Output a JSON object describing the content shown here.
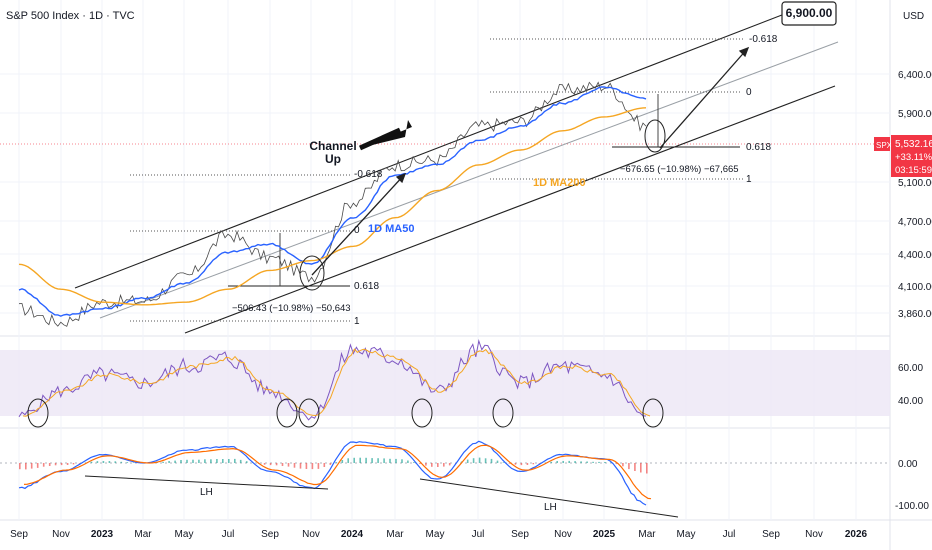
{
  "header": {
    "title": "S&P 500 Index · 1D · TVC"
  },
  "currency": "USD",
  "price_axis": {
    "ticks": [
      "6,400.00",
      "5,900.00",
      "5,100.00",
      "4,700.00",
      "4,400.00",
      "4,100.00",
      "3,860.00"
    ],
    "badge_symbol": "SPX",
    "badge_price": "5,532.16",
    "badge_change": "+33.11%",
    "badge_time": "03:15:59"
  },
  "rsi_axis": {
    "ticks": [
      "60.00",
      "40.00"
    ]
  },
  "macd_axis": {
    "ticks": [
      "0.00",
      "-100.00"
    ]
  },
  "time_axis": [
    "Sep",
    "Nov",
    "2023",
    "Mar",
    "May",
    "Jul",
    "Sep",
    "Nov",
    "2024",
    "Mar",
    "May",
    "Jul",
    "Sep",
    "Nov",
    "2025",
    "Mar",
    "May",
    "Jul",
    "Sep",
    "Nov",
    "2026"
  ],
  "annotations": {
    "target": "6,900.00",
    "channel": "Channel",
    "channel_up": "Up",
    "ma50": "1D MA50",
    "ma200": "1D MA200",
    "fib_neg618_a": "-0.618",
    "fib_0_a": "0",
    "fib_618_a": "0.618",
    "fib_1_a": "1",
    "fib_neg618_b": "-0.618",
    "fib_0_b": "0",
    "fib_618_b": "0.618",
    "fib_1_b": "1",
    "drop_a": "−506.43 (−10.98%) −50,643",
    "drop_b": "−676.65 (−10.98%) −67,665",
    "lh_a": "LH",
    "lh_b": "LH"
  },
  "colors": {
    "price": "#4a4a4a",
    "ma50": "#2962ff",
    "ma200": "#f5a623",
    "rsi": "#7e57c2",
    "rsi_band": "#ede7f6",
    "macd": "#2962ff",
    "signal": "#ff6d00",
    "hist_pos": "#26a69a",
    "hist_neg": "#ef5350",
    "badge": "#f23645"
  },
  "chart_data": {
    "type": "line",
    "title": "S&P 500 Index · 1D · TVC",
    "x": [
      "2022-09",
      "2022-11",
      "2023-01",
      "2023-03",
      "2023-05",
      "2023-07",
      "2023-09",
      "2023-11",
      "2024-01",
      "2024-03",
      "2024-05",
      "2024-07",
      "2024-09",
      "2024-11",
      "2025-01",
      "2025-03"
    ],
    "series": [
      {
        "name": "SPX",
        "values": [
          3900,
          3800,
          3950,
          3960,
          4150,
          4500,
          4300,
          4150,
          4800,
          5150,
          5200,
          5550,
          5600,
          5950,
          6000,
          5550
        ]
      },
      {
        "name": "1D MA50",
        "values": [
          4050,
          3850,
          3900,
          3980,
          4100,
          4350,
          4420,
          4250,
          4650,
          5050,
          5150,
          5400,
          5550,
          5800,
          5980,
          5850
        ]
      },
      {
        "name": "1D MA200",
        "values": [
          4250,
          4050,
          3950,
          3930,
          3950,
          4050,
          4200,
          4280,
          4400,
          4650,
          4900,
          5150,
          5300,
          5500,
          5650,
          5750
        ]
      }
    ],
    "ylim": [
      3700,
      7000
    ],
    "yscale": "log",
    "grid": true,
    "rsi": {
      "values": [
        30,
        45,
        55,
        50,
        60,
        65,
        45,
        30,
        70,
        65,
        45,
        70,
        50,
        60,
        55,
        30
      ],
      "band": [
        30,
        70
      ]
    },
    "macd": {
      "values": [
        -60,
        -20,
        20,
        0,
        30,
        40,
        -20,
        -60,
        50,
        40,
        -40,
        50,
        -20,
        20,
        10,
        -100
      ]
    }
  }
}
